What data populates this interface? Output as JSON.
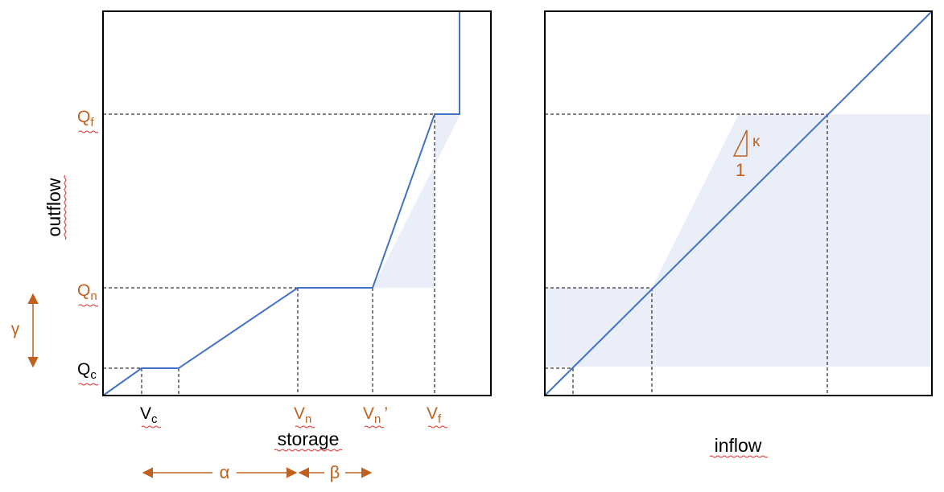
{
  "left_panel": {
    "xlabel": "storage",
    "ylabel": "outflow",
    "y_levels": [
      {
        "name": "q-c",
        "base": "Q",
        "sub": "c",
        "color": "#000000"
      },
      {
        "name": "q-n",
        "base": "Q",
        "sub": "n",
        "color": "#c0611f"
      },
      {
        "name": "q-f",
        "base": "Q",
        "sub": "f",
        "color": "#c0611f"
      }
    ],
    "x_levels": [
      {
        "name": "v-c",
        "base": "V",
        "sub": "c",
        "suffix": "",
        "color": "#000000"
      },
      {
        "name": "v-n",
        "base": "V",
        "sub": "n",
        "suffix": "",
        "color": "#c0611f"
      },
      {
        "name": "v-n-prime",
        "base": "V",
        "sub": "n",
        "suffix": "’",
        "color": "#c0611f"
      },
      {
        "name": "v-f",
        "base": "V",
        "sub": "f",
        "suffix": "",
        "color": "#c0611f"
      }
    ],
    "gamma": "γ",
    "alpha": "α",
    "beta": "β"
  },
  "right_panel": {
    "xlabel": "inflow",
    "slope_rise": "κ",
    "slope_run": "1"
  },
  "colors": {
    "curve": "#4472c4",
    "shade": "#e9eef8",
    "annotation": "#c0611f",
    "frame": "#000000"
  }
}
